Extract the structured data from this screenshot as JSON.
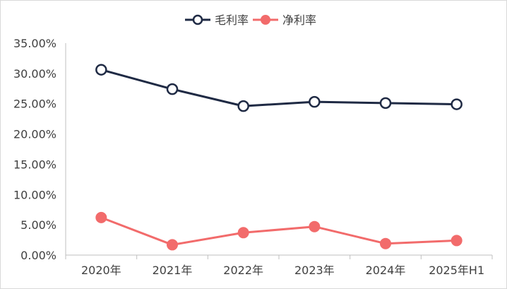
{
  "chart_data": {
    "type": "line",
    "categories": [
      "2020年",
      "2021年",
      "2022年",
      "2023年",
      "2024年",
      "2025年H1"
    ],
    "series": [
      {
        "name": "毛利率",
        "values": [
          30.6,
          27.4,
          24.6,
          25.3,
          25.1,
          24.9
        ],
        "color": "#1f2a44",
        "marker": "hollow-circle"
      },
      {
        "name": "净利率",
        "values": [
          6.2,
          1.7,
          3.7,
          4.7,
          1.9,
          2.4
        ],
        "color": "#f26b6b",
        "marker": "filled-circle"
      }
    ],
    "y_ticks": [
      "0.00%",
      "5.00%",
      "10.00%",
      "15.00%",
      "20.00%",
      "25.00%",
      "30.00%",
      "35.00%"
    ],
    "ylim": [
      0,
      35
    ],
    "grid": false,
    "legend_position": "top-center"
  }
}
